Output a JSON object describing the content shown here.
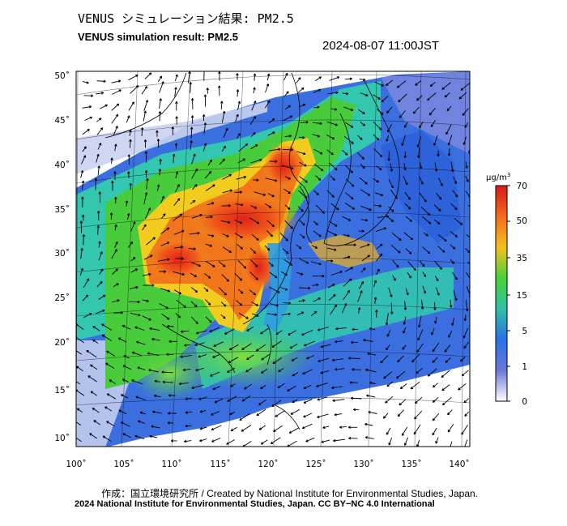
{
  "header": {
    "title_jp": "VENUS シミュレーション結果: PM2.5",
    "title_en": "VENUS simulation result: PM2.5",
    "timestamp": "2024-08-07 11:00JST"
  },
  "map": {
    "lat_labels": [
      "50˚",
      "45˚",
      "40˚",
      "35˚",
      "30˚",
      "25˚",
      "20˚",
      "15˚",
      "10˚"
    ],
    "lon_labels": [
      "100˚",
      "105˚",
      "110˚",
      "115˚",
      "120˚",
      "125˚",
      "130˚",
      "135˚",
      "140˚"
    ]
  },
  "colorbar": {
    "unit_prefix": "μg/m",
    "unit_sup": "3",
    "ticks": [
      "70",
      "50",
      "35",
      "15",
      "5",
      "1",
      "0"
    ],
    "colors": [
      "#d51a1a",
      "#f26b1b",
      "#f5c01e",
      "#47d336",
      "#2fc0a7",
      "#2a72e8",
      "#6a78d9",
      "#ffffff"
    ]
  },
  "footer": {
    "credit_line": "作成：国立環境研究所 / Created by National Institute for Environmental Studies, Japan.",
    "copyright_line": "2024 National Institute for Environmental Studies, Japan. CC BY−NC 4.0 International"
  }
}
